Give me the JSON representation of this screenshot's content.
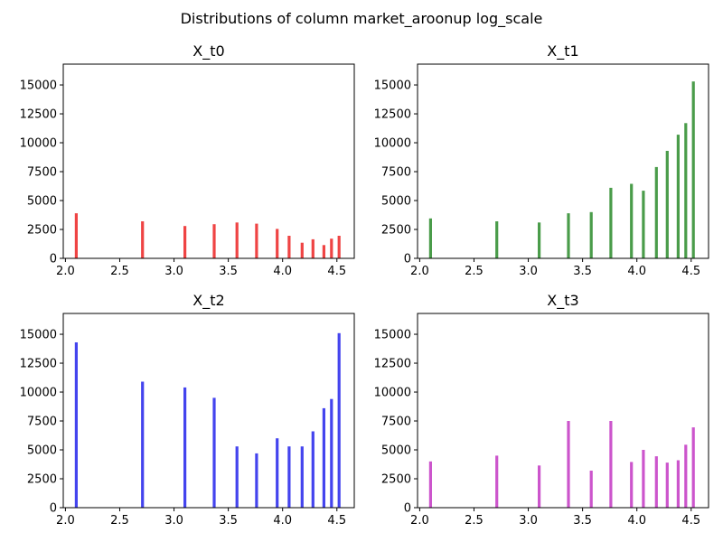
{
  "suptitle": "Distributions of column market_aroonup log_scale",
  "chart_data": [
    {
      "type": "bar",
      "title": "X_t0",
      "color": "#ef4444",
      "xlim": [
        1.98,
        4.66
      ],
      "ylim": [
        0,
        16800
      ],
      "xticks": [
        "2.0",
        "2.5",
        "3.0",
        "3.5",
        "4.0",
        "4.5"
      ],
      "yticks": [
        "0",
        "2500",
        "5000",
        "7500",
        "10000",
        "12500",
        "15000"
      ],
      "x": [
        2.1,
        2.71,
        3.1,
        3.37,
        3.58,
        3.76,
        3.95,
        4.06,
        4.18,
        4.28,
        4.38,
        4.45,
        4.52
      ],
      "values": [
        3900,
        3200,
        2800,
        2950,
        3100,
        3000,
        2550,
        1950,
        1350,
        1650,
        1150,
        1700,
        1950
      ]
    },
    {
      "type": "bar",
      "title": "X_t1",
      "color": "#4a9c4a",
      "xlim": [
        1.98,
        4.66
      ],
      "ylim": [
        0,
        16800
      ],
      "xticks": [
        "2.0",
        "2.5",
        "3.0",
        "3.5",
        "4.0",
        "4.5"
      ],
      "yticks": [
        "0",
        "2500",
        "5000",
        "7500",
        "10000",
        "12500",
        "15000"
      ],
      "x": [
        2.1,
        2.71,
        3.1,
        3.37,
        3.58,
        3.76,
        3.95,
        4.06,
        4.18,
        4.28,
        4.38,
        4.45,
        4.52
      ],
      "values": [
        3450,
        3200,
        3100,
        3900,
        4000,
        6100,
        6450,
        5850,
        7900,
        9300,
        10700,
        11700,
        15300
      ]
    },
    {
      "type": "bar",
      "title": "X_t2",
      "color": "#4444ee",
      "xlim": [
        1.98,
        4.66
      ],
      "ylim": [
        0,
        16800
      ],
      "xticks": [
        "2.0",
        "2.5",
        "3.0",
        "3.5",
        "4.0",
        "4.5"
      ],
      "yticks": [
        "0",
        "2500",
        "5000",
        "7500",
        "10000",
        "12500",
        "15000"
      ],
      "x": [
        2.1,
        2.71,
        3.1,
        3.37,
        3.58,
        3.76,
        3.95,
        4.06,
        4.18,
        4.28,
        4.38,
        4.45,
        4.52
      ],
      "values": [
        14300,
        10900,
        10400,
        9500,
        5300,
        4700,
        6000,
        5300,
        5300,
        6600,
        8600,
        9400,
        15100
      ]
    },
    {
      "type": "bar",
      "title": "X_t3",
      "color": "#cc55cc",
      "xlim": [
        1.98,
        4.66
      ],
      "ylim": [
        0,
        16800
      ],
      "xticks": [
        "2.0",
        "2.5",
        "3.0",
        "3.5",
        "4.0",
        "4.5"
      ],
      "yticks": [
        "0",
        "2500",
        "5000",
        "7500",
        "10000",
        "12500",
        "15000"
      ],
      "x": [
        2.1,
        2.71,
        3.1,
        3.37,
        3.58,
        3.76,
        3.95,
        4.06,
        4.18,
        4.28,
        4.38,
        4.45,
        4.52
      ],
      "values": [
        4000,
        4500,
        3650,
        7500,
        3200,
        7500,
        3950,
        5000,
        4450,
        3900,
        4100,
        5450,
        6950
      ]
    }
  ]
}
